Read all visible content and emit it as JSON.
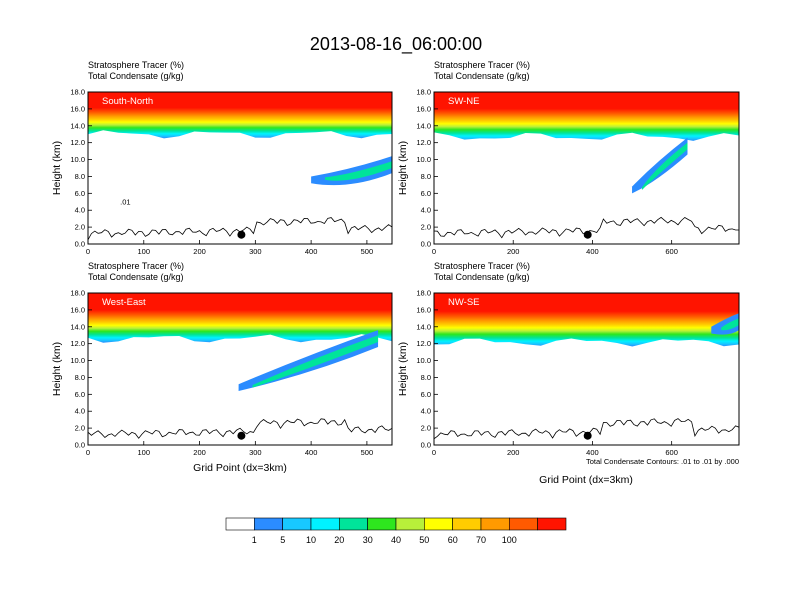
{
  "chart_data": {
    "type": "heatmap",
    "title": "2013-08-16_06:00:00",
    "panel_header": [
      "Stratosphere Tracer   (%)",
      "Total Condensate   (g/kg)"
    ],
    "ylabel": "Height (km)",
    "xlabel": "Grid Point (dx=3km)",
    "ylim": [
      0,
      18
    ],
    "yticks": [
      "0.0",
      "2.0",
      "4.0",
      "6.0",
      "8.0",
      "10.0",
      "12.0",
      "14.0",
      "16.0",
      "18.0"
    ],
    "contour_note": "Total Condensate Contours: .01 to .01 by .000",
    "contour_label": ".01",
    "colorbar": {
      "levels": [
        "1",
        "5",
        "10",
        "20",
        "30",
        "40",
        "50",
        "60",
        "70",
        "100"
      ],
      "colors": [
        "#ffffff",
        "#2b8cff",
        "#18c8ff",
        "#00f2ff",
        "#00e49a",
        "#2ee61e",
        "#b8f03a",
        "#ffff00",
        "#ffcc00",
        "#ff9a00",
        "#ff5a00",
        "#ff1400"
      ]
    },
    "panels": [
      {
        "name": "South-North",
        "xmax": 545,
        "xticks": [
          "0",
          "100",
          "200",
          "300",
          "400",
          "500"
        ]
      },
      {
        "name": "SW-NE",
        "xmax": 770,
        "xticks": [
          "0",
          "200",
          "400",
          "600"
        ]
      },
      {
        "name": "West-East",
        "xmax": 545,
        "xticks": [
          "0",
          "100",
          "200",
          "300",
          "400",
          "500"
        ]
      },
      {
        "name": "NW-SE",
        "xmax": 770,
        "xticks": [
          "0",
          "200",
          "400",
          "600"
        ]
      }
    ]
  }
}
